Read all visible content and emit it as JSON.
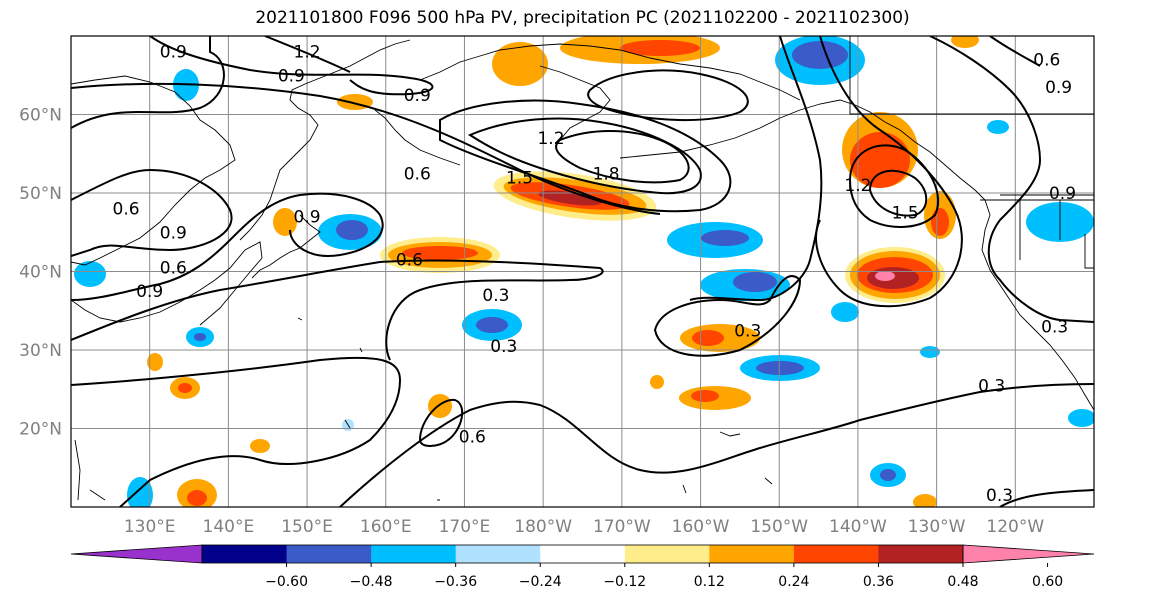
{
  "title": "2021101800 F096 500 hPa PV, precipitation PC (2021102200 - 2021102300)",
  "map": {
    "lon_range": [
      120,
      250
    ],
    "lat_range": [
      10,
      70
    ],
    "lat_ticks": [
      {
        "value": 20,
        "label": "20°N"
      },
      {
        "value": 30,
        "label": "30°N"
      },
      {
        "value": 40,
        "label": "40°N"
      },
      {
        "value": 50,
        "label": "50°N"
      },
      {
        "value": 60,
        "label": "60°N"
      }
    ],
    "lon_ticks": [
      {
        "value": 130,
        "label": "130°E"
      },
      {
        "value": 140,
        "label": "140°E"
      },
      {
        "value": 150,
        "label": "150°E"
      },
      {
        "value": 160,
        "label": "160°E"
      },
      {
        "value": 170,
        "label": "170°E"
      },
      {
        "value": 180,
        "label": "180°W"
      },
      {
        "value": 190,
        "label": "170°W"
      },
      {
        "value": 200,
        "label": "160°W"
      },
      {
        "value": 210,
        "label": "150°W"
      },
      {
        "value": 220,
        "label": "140°W"
      },
      {
        "value": 230,
        "label": "130°W"
      },
      {
        "value": 240,
        "label": "120°W"
      }
    ],
    "grid": true,
    "contour_labels": [
      {
        "text": "0.9",
        "lon": 133,
        "lat": 68
      },
      {
        "text": "1.2",
        "lon": 150,
        "lat": 68
      },
      {
        "text": "0.9",
        "lon": 148,
        "lat": 65
      },
      {
        "text": "0.9",
        "lon": 164,
        "lat": 62.5
      },
      {
        "text": "0.6",
        "lon": 164,
        "lat": 52.5
      },
      {
        "text": "1.2",
        "lon": 181,
        "lat": 57
      },
      {
        "text": "1.5",
        "lon": 177,
        "lat": 52
      },
      {
        "text": "1.8",
        "lon": 188,
        "lat": 52.5
      },
      {
        "text": "0.6",
        "lon": 127,
        "lat": 48
      },
      {
        "text": "0.9",
        "lon": 133,
        "lat": 45
      },
      {
        "text": "0.9",
        "lon": 150,
        "lat": 47
      },
      {
        "text": "0.6",
        "lon": 133,
        "lat": 40.5
      },
      {
        "text": "0.9",
        "lon": 130,
        "lat": 37.5
      },
      {
        "text": "0.6",
        "lon": 163,
        "lat": 41.5
      },
      {
        "text": "0.3",
        "lon": 174,
        "lat": 37
      },
      {
        "text": "0.3",
        "lon": 175,
        "lat": 30.5
      },
      {
        "text": "0.6",
        "lon": 171,
        "lat": 19
      },
      {
        "text": "1.2",
        "lon": 220,
        "lat": 51
      },
      {
        "text": "1.5",
        "lon": 226,
        "lat": 47.5
      },
      {
        "text": "0.3",
        "lon": 206,
        "lat": 32.5
      },
      {
        "text": "0.3",
        "lon": 237,
        "lat": 25.5
      },
      {
        "text": "0.3",
        "lon": 245,
        "lat": 33
      },
      {
        "text": "0.3",
        "lon": 238,
        "lat": 11.5
      },
      {
        "text": "0.6",
        "lon": 244,
        "lat": 67
      },
      {
        "text": "0.9",
        "lon": 245.5,
        "lat": 63.5
      },
      {
        "text": "0.9",
        "lon": 246,
        "lat": 50
      }
    ],
    "colors": {
      "land_lines": "#000000",
      "grid": "#8c8c8c",
      "contour": "#000000"
    }
  },
  "colorbar": {
    "labels": [
      "−0.60",
      "−0.48",
      "−0.36",
      "−0.24",
      "−0.12",
      "0.12",
      "0.24",
      "0.36",
      "0.48",
      "0.60"
    ],
    "colors": [
      "#9932cc",
      "#00008b",
      "#3a5bc8",
      "#00bfff",
      "#b0e2ff",
      "#ffffff",
      "#ffec8b",
      "#ffa500",
      "#ff4500",
      "#b22222",
      "#ff82ab"
    ]
  }
}
